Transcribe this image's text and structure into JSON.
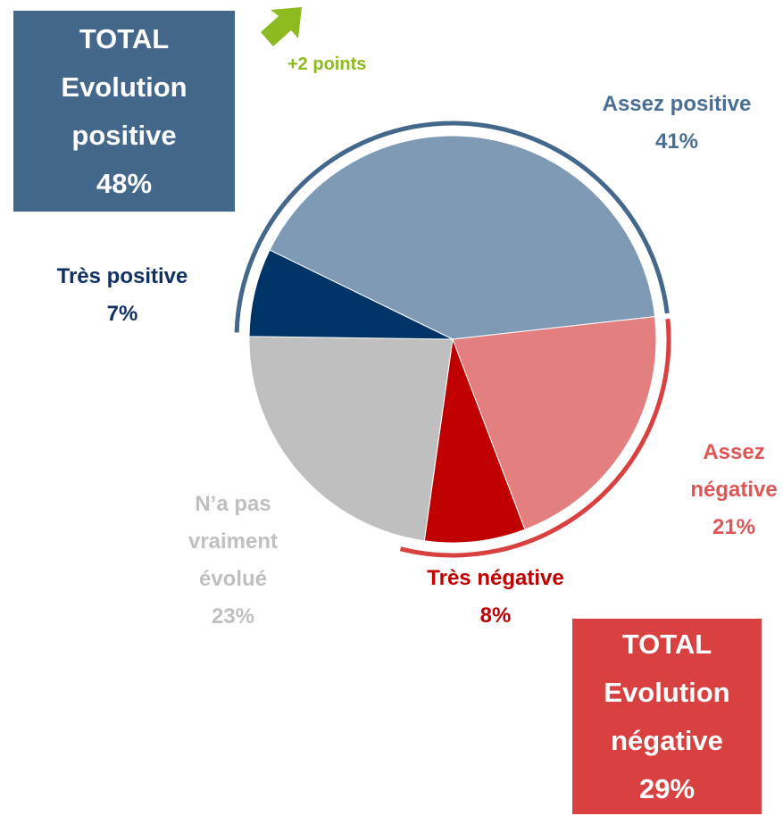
{
  "chart_data": {
    "type": "pie",
    "categories": [
      "Assez positive",
      "Assez négative",
      "Très négative",
      "N’a pas vraiment évolué",
      "Très positive"
    ],
    "values": [
      41,
      21,
      8,
      23,
      7
    ],
    "value_labels": [
      "41%",
      "21%",
      "8%",
      "23%",
      "7%"
    ],
    "colors": [
      "#7f9ab5",
      "#e47f7f",
      "#c00000",
      "#bfbfbf",
      "#003366"
    ],
    "label_colors": [
      "#4a6f95",
      "#e05555",
      "#c00000",
      "#c0c0c0",
      "#0f3164"
    ],
    "totals": [
      {
        "title": "TOTAL",
        "name": "Evolution positive",
        "label": "48%",
        "color": "#44678c"
      },
      {
        "title": "TOTAL",
        "name": "Evolution négative",
        "label": "29%",
        "color": "#d94040"
      }
    ],
    "annotation": "+2 points",
    "annotation_color": "#8cbb1f"
  }
}
